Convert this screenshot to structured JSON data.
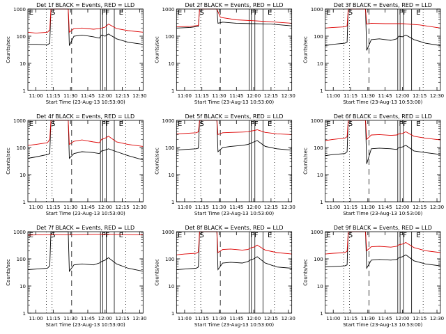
{
  "figure": {
    "ylabel": "Counts/sec",
    "xlabel": "Start Time (23-Aug-13 10:53:00)",
    "series_names": [
      "Events",
      "LLD"
    ],
    "colors": {
      "events": "#000000",
      "lld": "#dd0000",
      "axes": "#000000",
      "background": "#ffffff"
    }
  },
  "chart_data": [
    {
      "type": "line",
      "title": "Det 1f BLACK = Events, RED = LLD",
      "xlabel": "Start Time (23-Aug-13 10:53:00)",
      "ylabel": "Counts/sec",
      "xticks": [
        "11:00",
        "11:15",
        "11:30",
        "11:45",
        "12:00",
        "12:15",
        "12:30"
      ],
      "yticks": [
        "1",
        "10",
        "100",
        "1000"
      ],
      "xlim": [
        "10:53",
        "12:33"
      ],
      "ylim": [
        1,
        1000
      ],
      "y_scale": "log",
      "markers": [
        "E",
        "S",
        "FF",
        "E"
      ],
      "series": [
        {
          "name": "Events",
          "x": [
            "10:53",
            "11:00",
            "11:10",
            "11:12",
            "11:13",
            "11:28",
            "11:29",
            "11:33",
            "11:40",
            "11:50",
            "11:55",
            "11:57",
            "12:00",
            "12:03",
            "12:10",
            "12:20",
            "12:33"
          ],
          "values": [
            50,
            50,
            48,
            55,
            1000,
            1000,
            45,
            100,
            110,
            95,
            85,
            110,
            100,
            120,
            80,
            60,
            50
          ]
        },
        {
          "name": "LLD",
          "x": [
            "10:53",
            "11:00",
            "11:10",
            "11:12",
            "11:13",
            "11:28",
            "11:29",
            "11:33",
            "11:40",
            "11:50",
            "11:55",
            "11:57",
            "12:00",
            "12:03",
            "12:10",
            "12:20",
            "12:33"
          ],
          "values": [
            140,
            130,
            140,
            170,
            1000,
            1000,
            140,
            190,
            200,
            180,
            190,
            200,
            215,
            280,
            190,
            160,
            140
          ]
        }
      ]
    },
    {
      "type": "line",
      "title": "Det 2f BLACK = Events, RED = LLD",
      "xlabel": "Start Time (23-Aug-13 10:53:00)",
      "ylabel": "Counts/sec",
      "xticks": [
        "11:00",
        "11:15",
        "11:30",
        "11:45",
        "12:00",
        "12:15",
        "12:30"
      ],
      "yticks": [
        "1",
        "10",
        "100",
        "1000"
      ],
      "xlim": [
        "10:53",
        "12:33"
      ],
      "ylim": [
        1,
        1000
      ],
      "y_scale": "log",
      "markers": [
        "E",
        "S",
        "FF",
        "E"
      ],
      "series": [
        {
          "name": "Events",
          "x": [
            "10:53",
            "11:05",
            "11:12",
            "11:13",
            "11:28",
            "11:29",
            "11:33",
            "11:45",
            "12:00",
            "12:15",
            "12:33"
          ],
          "values": [
            200,
            210,
            230,
            1000,
            1000,
            300,
            330,
            300,
            290,
            280,
            240
          ]
        },
        {
          "name": "LLD",
          "x": [
            "10:53",
            "11:05",
            "11:12",
            "11:13",
            "11:28",
            "11:29",
            "11:31",
            "11:33",
            "11:45",
            "12:00",
            "12:15",
            "12:33"
          ],
          "values": [
            220,
            230,
            250,
            1000,
            1000,
            800,
            500,
            480,
            400,
            370,
            340,
            300
          ]
        }
      ]
    },
    {
      "type": "line",
      "title": "Det 3f BLACK = Events, RED = LLD",
      "xlabel": "Start Time (23-Aug-13 10:53:00)",
      "ylabel": "Counts/sec",
      "xticks": [
        "11:00",
        "11:15",
        "11:30",
        "11:45",
        "12:00",
        "12:15",
        "12:30"
      ],
      "yticks": [
        "1",
        "10",
        "100",
        "1000"
      ],
      "xlim": [
        "10:53",
        "12:33"
      ],
      "ylim": [
        1,
        1000
      ],
      "y_scale": "log",
      "markers": [
        "E",
        "S",
        "FF",
        "E"
      ],
      "series": [
        {
          "name": "Events",
          "x": [
            "10:53",
            "11:00",
            "11:10",
            "11:12",
            "11:13",
            "11:28",
            "11:29",
            "11:33",
            "11:40",
            "11:50",
            "11:55",
            "11:57",
            "12:00",
            "12:03",
            "12:10",
            "12:20",
            "12:33"
          ],
          "values": [
            45,
            50,
            55,
            60,
            1000,
            1000,
            30,
            75,
            80,
            70,
            80,
            100,
            95,
            110,
            75,
            55,
            45
          ]
        },
        {
          "name": "LLD",
          "x": [
            "10:53",
            "11:00",
            "11:10",
            "11:12",
            "11:13",
            "11:28",
            "11:29",
            "11:33",
            "11:45",
            "12:00",
            "12:15",
            "12:33"
          ],
          "values": [
            200,
            210,
            220,
            240,
            1000,
            1000,
            280,
            300,
            290,
            290,
            260,
            200
          ]
        }
      ]
    },
    {
      "type": "line",
      "title": "Det 4f BLACK = Events, RED = LLD",
      "xlabel": "Start Time (23-Aug-13 10:53:00)",
      "ylabel": "Counts/sec",
      "xticks": [
        "11:00",
        "11:15",
        "11:30",
        "11:45",
        "12:00",
        "12:15",
        "12:30"
      ],
      "yticks": [
        "1",
        "10",
        "100",
        "1000"
      ],
      "xlim": [
        "10:53",
        "12:33"
      ],
      "ylim": [
        1,
        1000
      ],
      "y_scale": "log",
      "markers": [
        "E",
        "S",
        "FF",
        "E"
      ],
      "series": [
        {
          "name": "Events",
          "x": [
            "10:53",
            "11:00",
            "11:10",
            "11:12",
            "11:13",
            "11:28",
            "11:29",
            "11:33",
            "11:40",
            "11:50",
            "11:55",
            "11:57",
            "12:00",
            "12:03",
            "12:10",
            "12:20",
            "12:33"
          ],
          "values": [
            40,
            45,
            55,
            60,
            1000,
            1000,
            40,
            60,
            70,
            65,
            60,
            75,
            80,
            90,
            70,
            50,
            35
          ]
        },
        {
          "name": "LLD",
          "x": [
            "10:53",
            "11:00",
            "11:10",
            "11:12",
            "11:13",
            "11:28",
            "11:29",
            "11:33",
            "11:40",
            "11:50",
            "11:55",
            "11:57",
            "12:00",
            "12:03",
            "12:10",
            "12:20",
            "12:33"
          ],
          "values": [
            120,
            130,
            150,
            200,
            1000,
            1000,
            130,
            170,
            190,
            160,
            150,
            200,
            220,
            260,
            160,
            130,
            110
          ]
        }
      ]
    },
    {
      "type": "line",
      "title": "Det 5f BLACK = Events, RED = LLD",
      "xlabel": "Start Time (23-Aug-13 10:53:00)",
      "ylabel": "Counts/sec",
      "xticks": [
        "11:00",
        "11:15",
        "11:30",
        "11:45",
        "12:00",
        "12:15",
        "12:30"
      ],
      "yticks": [
        "1",
        "10",
        "100",
        "1000"
      ],
      "xlim": [
        "10:53",
        "12:33"
      ],
      "ylim": [
        1,
        1000
      ],
      "y_scale": "log",
      "markers": [
        "E",
        "S",
        "FF",
        "E"
      ],
      "series": [
        {
          "name": "Events",
          "x": [
            "10:53",
            "11:00",
            "11:10",
            "11:12",
            "11:13",
            "11:28",
            "11:29",
            "11:33",
            "11:40",
            "11:50",
            "11:55",
            "11:57",
            "12:00",
            "12:03",
            "12:10",
            "12:20",
            "12:33"
          ],
          "values": [
            80,
            85,
            90,
            95,
            1000,
            1000,
            70,
            100,
            110,
            120,
            130,
            140,
            160,
            180,
            110,
            90,
            80
          ]
        },
        {
          "name": "LLD",
          "x": [
            "10:53",
            "11:00",
            "11:10",
            "11:12",
            "11:13",
            "11:28",
            "11:29",
            "11:33",
            "11:40",
            "11:50",
            "11:55",
            "11:57",
            "12:00",
            "12:03",
            "12:10",
            "12:20",
            "12:33"
          ],
          "values": [
            320,
            330,
            350,
            380,
            1000,
            1000,
            300,
            350,
            360,
            370,
            380,
            400,
            420,
            450,
            360,
            320,
            300
          ]
        }
      ]
    },
    {
      "type": "line",
      "title": "Det 6f BLACK = Events, RED = LLD",
      "xlabel": "Start Time (23-Aug-13 10:53:00)",
      "ylabel": "Counts/sec",
      "xticks": [
        "11:00",
        "11:15",
        "11:30",
        "11:45",
        "12:00",
        "12:15",
        "12:30"
      ],
      "yticks": [
        "1",
        "10",
        "100",
        "1000"
      ],
      "xlim": [
        "10:53",
        "12:33"
      ],
      "ylim": [
        1,
        1000
      ],
      "y_scale": "log",
      "markers": [
        "E",
        "S",
        "FF",
        "E"
      ],
      "series": [
        {
          "name": "Events",
          "x": [
            "10:53",
            "11:00",
            "11:10",
            "11:12",
            "11:13",
            "11:28",
            "11:29",
            "11:33",
            "11:40",
            "11:50",
            "11:55",
            "11:57",
            "12:00",
            "12:03",
            "12:10",
            "12:20",
            "12:33"
          ],
          "values": [
            50,
            55,
            60,
            70,
            1000,
            1000,
            25,
            90,
            95,
            90,
            85,
            100,
            105,
            120,
            75,
            65,
            55
          ]
        },
        {
          "name": "LLD",
          "x": [
            "10:53",
            "11:00",
            "11:10",
            "11:12",
            "11:13",
            "11:28",
            "11:29",
            "11:33",
            "11:40",
            "11:50",
            "11:55",
            "11:57",
            "12:00",
            "12:03",
            "12:10",
            "12:20",
            "12:33"
          ],
          "values": [
            180,
            200,
            220,
            250,
            1000,
            1000,
            200,
            290,
            300,
            280,
            290,
            320,
            330,
            380,
            260,
            220,
            190
          ]
        }
      ]
    },
    {
      "type": "line",
      "title": "Det 7f BLACK = Events, RED = LLD",
      "xlabel": "Start Time (23-Aug-13 10:53:00)",
      "ylabel": "Counts/sec",
      "xticks": [
        "11:00",
        "11:15",
        "11:30",
        "11:45",
        "12:00",
        "12:15",
        "12:30"
      ],
      "yticks": [
        "1",
        "10",
        "100",
        "1000"
      ],
      "xlim": [
        "10:53",
        "12:33"
      ],
      "ylim": [
        1,
        1000
      ],
      "y_scale": "log",
      "markers": [
        "E",
        "S",
        "FF",
        "E"
      ],
      "series": [
        {
          "name": "Events",
          "x": [
            "10:53",
            "11:00",
            "11:10",
            "11:12",
            "11:13",
            "11:28",
            "11:29",
            "11:33",
            "11:40",
            "11:50",
            "11:55",
            "11:57",
            "12:00",
            "12:03",
            "12:10",
            "12:20",
            "12:33"
          ],
          "values": [
            40,
            42,
            45,
            55,
            1000,
            1000,
            35,
            60,
            65,
            60,
            70,
            80,
            90,
            110,
            65,
            45,
            35
          ]
        },
        {
          "name": "LLD",
          "x": [
            "10:53",
            "11:00",
            "11:15",
            "11:30",
            "11:45",
            "12:00",
            "12:15",
            "12:33"
          ],
          "values": [
            750,
            760,
            780,
            760,
            800,
            820,
            780,
            760
          ]
        }
      ]
    },
    {
      "type": "line",
      "title": "Det 8f BLACK = Events, RED = LLD",
      "xlabel": "Start Time (23-Aug-13 10:53:00)",
      "ylabel": "Counts/sec",
      "xticks": [
        "11:00",
        "11:15",
        "11:30",
        "11:45",
        "12:00",
        "12:15",
        "12:30"
      ],
      "yticks": [
        "1",
        "10",
        "100",
        "1000"
      ],
      "xlim": [
        "10:53",
        "12:33"
      ],
      "ylim": [
        1,
        1000
      ],
      "y_scale": "log",
      "markers": [
        "E",
        "S",
        "FF",
        "E"
      ],
      "series": [
        {
          "name": "Events",
          "x": [
            "10:53",
            "11:00",
            "11:10",
            "11:12",
            "11:13",
            "11:28",
            "11:29",
            "11:33",
            "11:40",
            "11:50",
            "11:55",
            "11:57",
            "12:00",
            "12:03",
            "12:10",
            "12:20",
            "12:33"
          ],
          "values": [
            40,
            42,
            45,
            50,
            1000,
            1000,
            40,
            70,
            75,
            70,
            80,
            90,
            100,
            120,
            70,
            50,
            45
          ]
        },
        {
          "name": "LLD",
          "x": [
            "10:53",
            "11:00",
            "11:10",
            "11:12",
            "11:13",
            "11:28",
            "11:29",
            "11:33",
            "11:40",
            "11:50",
            "11:55",
            "11:57",
            "12:00",
            "12:03",
            "12:10",
            "12:20",
            "12:33"
          ],
          "values": [
            140,
            150,
            160,
            180,
            1000,
            1000,
            170,
            220,
            230,
            210,
            220,
            250,
            270,
            320,
            210,
            170,
            150
          ]
        }
      ]
    },
    {
      "type": "line",
      "title": "Det 9f BLACK = Events, RED = LLD",
      "xlabel": "Start Time (23-Aug-13 10:53:00)",
      "ylabel": "Counts/sec",
      "xticks": [
        "11:00",
        "11:15",
        "11:30",
        "11:45",
        "12:00",
        "12:15",
        "12:30"
      ],
      "yticks": [
        "1",
        "10",
        "100",
        "1000"
      ],
      "xlim": [
        "10:53",
        "12:33"
      ],
      "ylim": [
        1,
        1000
      ],
      "y_scale": "log",
      "markers": [
        "E",
        "S",
        "FF",
        "E"
      ],
      "series": [
        {
          "name": "Events",
          "x": [
            "10:53",
            "11:00",
            "11:10",
            "11:12",
            "11:13",
            "11:28",
            "11:29",
            "11:33",
            "11:40",
            "11:50",
            "11:55",
            "11:57",
            "12:00",
            "12:03",
            "12:10",
            "12:20",
            "12:33"
          ],
          "values": [
            50,
            52,
            55,
            60,
            1000,
            1000,
            45,
            90,
            95,
            90,
            95,
            110,
            120,
            140,
            85,
            65,
            55
          ]
        },
        {
          "name": "LLD",
          "x": [
            "10:53",
            "11:00",
            "11:10",
            "11:12",
            "11:13",
            "11:28",
            "11:29",
            "11:33",
            "11:40",
            "11:50",
            "11:55",
            "11:57",
            "12:00",
            "12:03",
            "12:10",
            "12:20",
            "12:33"
          ],
          "values": [
            150,
            160,
            170,
            190,
            1000,
            1000,
            200,
            280,
            290,
            270,
            290,
            330,
            350,
            400,
            260,
            200,
            170
          ]
        }
      ]
    }
  ]
}
